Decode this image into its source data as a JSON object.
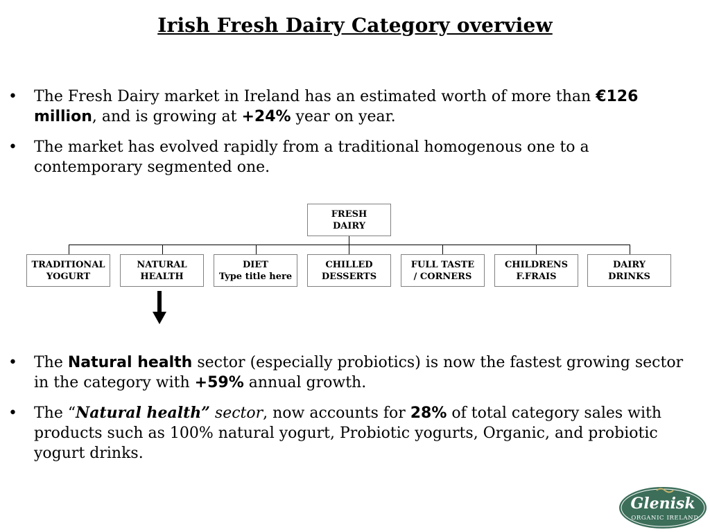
{
  "title": "Irish Fresh Dairy Category overview",
  "bullet_char": "•",
  "top_bullets": [
    {
      "pre": "The Fresh Dairy market in Ireland has an estimated worth of more than ",
      "b1": "€126 million",
      "mid": ", and is growing at ",
      "b2": "+24%",
      "post": " year on year."
    },
    {
      "text": "The market has evolved rapidly from a traditional homogenous one to a contemporary segmented one."
    }
  ],
  "diagram": {
    "root": {
      "line1": "FRESH",
      "line2": "DAIRY"
    },
    "children": [
      {
        "line1": "TRADITIONAL",
        "line2": "YOGURT"
      },
      {
        "line1": "NATURAL",
        "line2": "HEALTH"
      },
      {
        "line1": "DIET",
        "line2": "Type title here"
      },
      {
        "line1": "CHILLED",
        "line2": "DESSERTS"
      },
      {
        "line1": "FULL TASTE",
        "line2": "/ CORNERS"
      },
      {
        "line1": "CHILDRENS",
        "line2": "F.FRAIS"
      },
      {
        "line1": "DAIRY",
        "line2": "DRINKS"
      }
    ]
  },
  "bottom_bullets": [
    {
      "pre": "The ",
      "b1": "Natural health",
      "mid": " sector (especially probiotics) is now the fastest growing sector in the category with ",
      "b2": "+59%",
      "post": " annual growth."
    },
    {
      "pre": "The  “",
      "bi": "Natural health”",
      "it": " sector",
      "mid": ", now accounts for ",
      "b2": "28%",
      "post": " of total category sales with products such as 100% natural yogurt, Probiotic yogurts, Organic, and probiotic yogurt drinks."
    }
  ],
  "logo": {
    "brand": "Glenisk",
    "tagline": "ORGANIC IRELAND",
    "bg_color": "#3c6e5a",
    "ring_color": "#ffffff"
  }
}
